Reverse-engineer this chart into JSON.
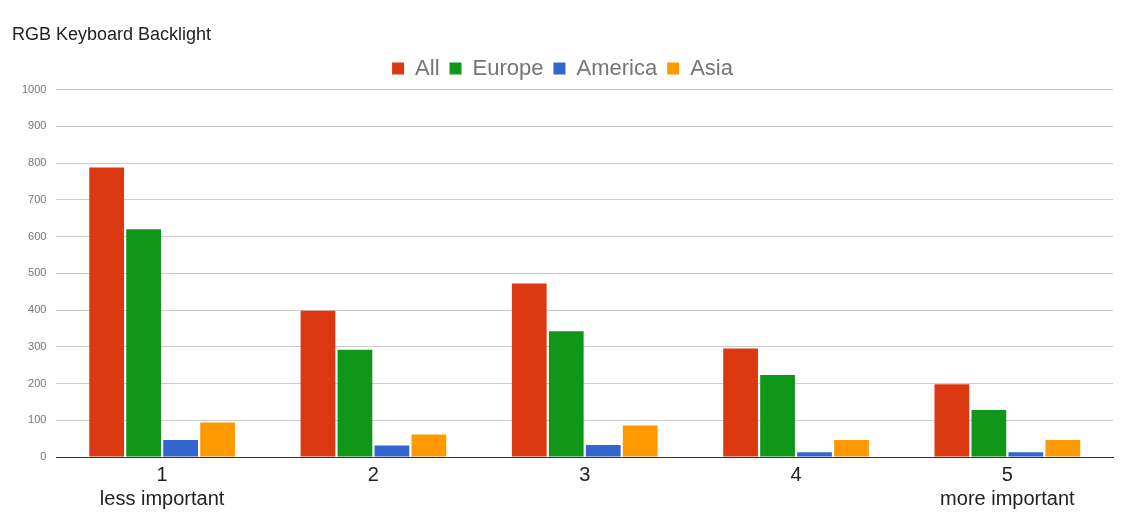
{
  "chart_data": {
    "type": "bar",
    "title": "RGB Keyboard Backlight",
    "categories": [
      "1\nless important",
      "2",
      "3",
      "4",
      "5\nmore important"
    ],
    "series": [
      {
        "name": "All",
        "color": "#dc3912",
        "values": [
          788,
          398,
          472,
          295,
          198
        ]
      },
      {
        "name": "Europe",
        "color": "#109618",
        "values": [
          620,
          292,
          342,
          223,
          128
        ]
      },
      {
        "name": "America",
        "color": "#3366cc",
        "values": [
          46,
          31,
          33,
          13,
          13
        ]
      },
      {
        "name": "Asia",
        "color": "#ff9900",
        "values": [
          94,
          61,
          86,
          46,
          46
        ]
      }
    ],
    "ylim": [
      0,
      1000
    ],
    "yticks": [
      0,
      100,
      200,
      300,
      400,
      500,
      600,
      700,
      800,
      900,
      1000
    ],
    "grid": "y",
    "legend": "top"
  }
}
